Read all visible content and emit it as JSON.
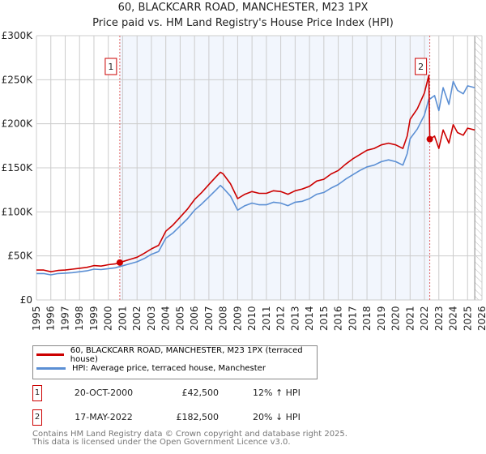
{
  "chart_data": {
    "type": "line",
    "title": "60, BLACKCARR ROAD, MANCHESTER, M23 1PX",
    "subtitle": "Price paid vs. HM Land Registry's House Price Index (HPI)",
    "xlabel": "",
    "ylabel": "",
    "xlim": [
      1995,
      2026
    ],
    "ylim": [
      0,
      300000
    ],
    "x_ticks": [
      "1995",
      "1996",
      "1997",
      "1998",
      "1999",
      "2000",
      "2001",
      "2002",
      "2003",
      "2004",
      "2005",
      "2006",
      "2007",
      "2008",
      "2009",
      "2010",
      "2011",
      "2012",
      "2013",
      "2014",
      "2015",
      "2016",
      "2017",
      "2018",
      "2019",
      "2020",
      "2021",
      "2022",
      "2023",
      "2024",
      "2025",
      "2026"
    ],
    "y_ticks": [
      {
        "v": 0,
        "label": "£0"
      },
      {
        "v": 50000,
        "label": "£50K"
      },
      {
        "v": 100000,
        "label": "£100K"
      },
      {
        "v": 150000,
        "label": "£150K"
      },
      {
        "v": 200000,
        "label": "£200K"
      },
      {
        "v": 250000,
        "label": "£250K"
      },
      {
        "v": 300000,
        "label": "£300K"
      }
    ],
    "grid": true,
    "shaded_range": [
      2000.8,
      2022.37
    ],
    "forecast_hatch_from": 2025.5,
    "series": [
      {
        "name": "60, BLACKCARR ROAD, MANCHESTER, M23 1PX (terraced house)",
        "color": "#cc0000",
        "x": [
          1995,
          1995.5,
          1996,
          1996.5,
          1997,
          1997.5,
          1998,
          1998.5,
          1999,
          1999.5,
          2000,
          2000.5,
          2000.8,
          2001,
          2001.5,
          2002,
          2002.5,
          2003,
          2003.5,
          2004,
          2004.5,
          2005,
          2005.5,
          2006,
          2006.5,
          2007,
          2007.5,
          2007.8,
          2008,
          2008.5,
          2009,
          2009.5,
          2010,
          2010.5,
          2011,
          2011.5,
          2012,
          2012.5,
          2013,
          2013.5,
          2014,
          2014.5,
          2015,
          2015.5,
          2016,
          2016.5,
          2017,
          2017.5,
          2018,
          2018.5,
          2019,
          2019.5,
          2020,
          2020.5,
          2020.8,
          2021,
          2021.5,
          2022,
          2022.3,
          2022.37,
          2022.7,
          2023,
          2023.3,
          2023.7,
          2024,
          2024.3,
          2024.7,
          2025,
          2025.5
        ],
        "y": [
          34000,
          34000,
          32000,
          33500,
          34000,
          35000,
          36000,
          37000,
          39000,
          38500,
          40000,
          41000,
          42500,
          43500,
          46000,
          48500,
          53000,
          58000,
          62000,
          78000,
          85000,
          94000,
          103000,
          114000,
          122000,
          131000,
          140000,
          145000,
          143000,
          132000,
          115000,
          120000,
          123000,
          121000,
          121000,
          124000,
          123000,
          120000,
          124000,
          126000,
          129000,
          135000,
          137000,
          143000,
          147000,
          154000,
          160000,
          165000,
          170000,
          172000,
          176000,
          178000,
          176000,
          172000,
          186000,
          205000,
          217000,
          235000,
          255000,
          182500,
          186000,
          172000,
          193000,
          178000,
          199000,
          190000,
          187000,
          195000,
          193000
        ]
      },
      {
        "name": "HPI: Average price, terraced house, Manchester",
        "color": "#5b8fd4",
        "x": [
          1995,
          1995.5,
          1996,
          1996.5,
          1997,
          1997.5,
          1998,
          1998.5,
          1999,
          1999.5,
          2000,
          2000.5,
          2000.8,
          2001,
          2001.5,
          2002,
          2002.5,
          2003,
          2003.5,
          2004,
          2004.5,
          2005,
          2005.5,
          2006,
          2006.5,
          2007,
          2007.5,
          2007.8,
          2008,
          2008.5,
          2009,
          2009.5,
          2010,
          2010.5,
          2011,
          2011.5,
          2012,
          2012.5,
          2013,
          2013.5,
          2014,
          2014.5,
          2015,
          2015.5,
          2016,
          2016.5,
          2017,
          2017.5,
          2018,
          2018.5,
          2019,
          2019.5,
          2020,
          2020.5,
          2020.8,
          2021,
          2021.5,
          2022,
          2022.3,
          2022.37,
          2022.7,
          2023,
          2023.3,
          2023.7,
          2024,
          2024.3,
          2024.7,
          2025,
          2025.5
        ],
        "y": [
          30000,
          30000,
          28500,
          30000,
          30500,
          31000,
          32000,
          33000,
          35000,
          34500,
          35500,
          36500,
          38000,
          38800,
          41000,
          43300,
          47000,
          51800,
          55000,
          70000,
          76000,
          84000,
          92000,
          102000,
          109000,
          117000,
          125000,
          130000,
          127000,
          118000,
          102000,
          107000,
          110000,
          108000,
          108000,
          111000,
          110000,
          107000,
          111000,
          112000,
          115000,
          120000,
          122000,
          127000,
          131000,
          137000,
          142000,
          147000,
          151000,
          153000,
          157000,
          159000,
          157000,
          153000,
          166000,
          183000,
          194000,
          210000,
          228000,
          228000,
          232000,
          215000,
          241000,
          222000,
          248000,
          238000,
          234000,
          243000,
          241000
        ]
      }
    ],
    "sales": [
      {
        "id": "1",
        "x": 2000.8,
        "y": 42500
      },
      {
        "id": "2",
        "x": 2022.37,
        "y": 182500
      }
    ]
  },
  "legend": {
    "property": "60, BLACKCARR ROAD, MANCHESTER, M23 1PX (terraced house)",
    "hpi": "HPI: Average price, terraced house, Manchester"
  },
  "sales_table": [
    {
      "id": "1",
      "date": "20-OCT-2000",
      "price": "£42,500",
      "hpi": "12% ↑ HPI"
    },
    {
      "id": "2",
      "date": "17-MAY-2022",
      "price": "£182,500",
      "hpi": "20% ↓ HPI"
    }
  ],
  "footer": {
    "line1": "Contains HM Land Registry data © Crown copyright and database right 2025.",
    "line2": "This data is licensed under the Open Government Licence v3.0."
  }
}
